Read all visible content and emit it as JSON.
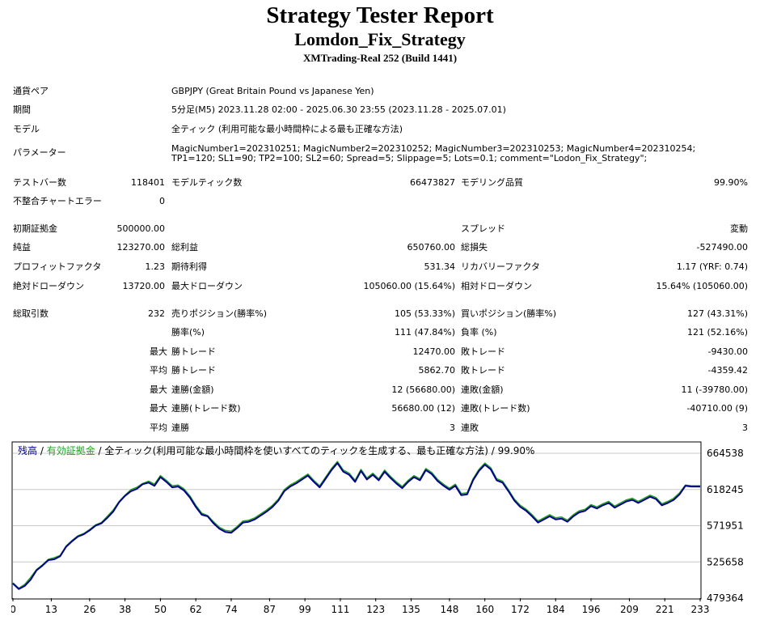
{
  "header": {
    "title": "Strategy Tester Report",
    "strategy": "Lomdon_Fix_Strategy",
    "server": "XMTrading-Real 252 (Build 1441)"
  },
  "settings": {
    "symbol_label": "通貨ペア",
    "symbol_value": "GBPJPY (Great Britain Pound vs Japanese Yen)",
    "period_label": "期間",
    "period_value": "5分足(M5) 2023.11.28 02:00 - 2025.06.30 23:55 (2023.11.28 - 2025.07.01)",
    "model_label": "モデル",
    "model_value": "全ティック (利用可能な最小時間枠による最も正確な方法)",
    "params_label": "パラメーター",
    "params_value": "MagicNumber1=202310251; MagicNumber2=202310252; MagicNumber3=202310253; MagicNumber4=202310254; TP1=120; SL1=90; TP2=100; SL2=60; Spread=5; Slippage=5; Lots=0.1; comment=\"Lodon_Fix_Strategy\";"
  },
  "stats": {
    "bars_label": "テストバー数",
    "bars_value": "118401",
    "ticks_label": "モデルティック数",
    "ticks_value": "66473827",
    "quality_label": "モデリング品質",
    "quality_value": "99.90%",
    "errors_label": "不整合チャートエラー",
    "errors_value": "0",
    "deposit_label": "初期証拠金",
    "deposit_value": "500000.00",
    "spread_label": "スプレッド",
    "spread_value": "変動",
    "net_label": "純益",
    "net_value": "123270.00",
    "gross_profit_label": "総利益",
    "gross_profit_value": "650760.00",
    "gross_loss_label": "総損失",
    "gross_loss_value": "-527490.00",
    "pf_label": "プロフィットファクタ",
    "pf_value": "1.23",
    "payoff_label": "期待利得",
    "payoff_value": "531.34",
    "recovery_label": "リカバリーファクタ",
    "recovery_value": "1.17 (YRF: 0.74)",
    "abs_dd_label": "絶対ドローダウン",
    "abs_dd_value": "13720.00",
    "max_dd_label": "最大ドローダウン",
    "max_dd_value": "105060.00 (15.64%)",
    "rel_dd_label": "相対ドローダウン",
    "rel_dd_value": "15.64% (105060.00)",
    "trades_label": "総取引数",
    "trades_value": "232",
    "short_label": "売りポジション(勝率%)",
    "short_value": "105 (53.33%)",
    "long_label": "買いポジション(勝率%)",
    "long_value": "127 (43.31%)",
    "win_label": "勝率(%)",
    "win_value": "111 (47.84%)",
    "loss_label": "負率 (%)",
    "loss_value": "121 (52.16%)",
    "max_prefix": "最大",
    "avg_prefix": "平均",
    "largest_win_label": "勝トレード",
    "largest_win_value": "12470.00",
    "largest_loss_label": "敗トレード",
    "largest_loss_value": "-9430.00",
    "avg_win_label": "勝トレード",
    "avg_win_value": "5862.70",
    "avg_loss_label": "敗トレード",
    "avg_loss_value": "-4359.42",
    "max_consec_wins_label": "連勝(金額)",
    "max_consec_wins_value": "12 (56680.00)",
    "max_consec_losses_label": "連敗(金額)",
    "max_consec_losses_value": "11 (-39780.00)",
    "max_consec_profit_label": "連勝(トレード数)",
    "max_consec_profit_value": "56680.00 (12)",
    "max_consec_loss_label": "連敗(トレード数)",
    "max_consec_loss_value": "-40710.00 (9)",
    "avg_consec_wins_label": "連勝",
    "avg_consec_wins_value": "3",
    "avg_consec_losses_label": "連敗",
    "avg_consec_losses_value": "3"
  },
  "chart_title": {
    "balance": "残高",
    "sep1": " / ",
    "equity": "有効証拠金",
    "sep2": " / ",
    "rest": "全ティック(利用可能な最小時間枠を使いすべてのティックを生成する、最も正確な方法) / 99.90%"
  },
  "colors": {
    "balance": "#00008b",
    "equity": "#1fa01f",
    "grid": "#c8c8c8"
  },
  "chart_data": {
    "type": "line",
    "title": "",
    "xlabel": "",
    "ylabel": "",
    "x_ticks": [
      "0",
      "13",
      "26",
      "38",
      "50",
      "62",
      "74",
      "87",
      "99",
      "111",
      "123",
      "135",
      "148",
      "160",
      "172",
      "184",
      "196",
      "209",
      "221",
      "233"
    ],
    "y_ticks": [
      "664538",
      "618245",
      "571951",
      "525658",
      "479364"
    ],
    "xlim": [
      0,
      233
    ],
    "ylim": [
      479364,
      678000
    ],
    "grid": true,
    "series": [
      {
        "name": "残高",
        "x": [
          0,
          2,
          4,
          6,
          8,
          10,
          12,
          14,
          16,
          18,
          20,
          22,
          24,
          26,
          28,
          30,
          32,
          34,
          36,
          38,
          40,
          42,
          44,
          46,
          48,
          50,
          52,
          54,
          56,
          58,
          60,
          62,
          64,
          66,
          68,
          70,
          72,
          74,
          76,
          78,
          80,
          82,
          84,
          86,
          88,
          90,
          92,
          94,
          96,
          98,
          100,
          102,
          104,
          106,
          108,
          110,
          112,
          114,
          116,
          118,
          120,
          122,
          124,
          126,
          128,
          130,
          132,
          134,
          136,
          138,
          140,
          142,
          144,
          146,
          148,
          150,
          152,
          154,
          156,
          158,
          160,
          162,
          164,
          166,
          168,
          170,
          172,
          174,
          176,
          178,
          180,
          182,
          184,
          186,
          188,
          190,
          192,
          194,
          196,
          198,
          200,
          202,
          204,
          206,
          208,
          210,
          212,
          214,
          216,
          218,
          220,
          222,
          224,
          226,
          228,
          230,
          233
        ],
        "values": [
          498000,
          491000,
          495000,
          503000,
          515000,
          521000,
          528000,
          529000,
          533000,
          545000,
          552000,
          558000,
          561000,
          566000,
          572000,
          575000,
          582000,
          590000,
          602000,
          610000,
          616000,
          619000,
          625000,
          627000,
          623000,
          634000,
          628000,
          621000,
          622000,
          617000,
          608000,
          596000,
          586000,
          584000,
          575000,
          568000,
          564000,
          563000,
          569000,
          576000,
          577000,
          580000,
          585000,
          590000,
          596000,
          604000,
          616000,
          622000,
          626000,
          631000,
          636000,
          628000,
          621000,
          632000,
          643000,
          652000,
          641000,
          637000,
          628000,
          642000,
          631000,
          637000,
          630000,
          641000,
          633000,
          626000,
          620000,
          628000,
          634000,
          630000,
          643000,
          638000,
          629000,
          623000,
          618000,
          623000,
          611000,
          612000,
          630000,
          642000,
          650000,
          644000,
          630000,
          627000,
          616000,
          604000,
          596000,
          591000,
          584000,
          576000,
          580000,
          584000,
          580000,
          581000,
          577000,
          584000,
          589000,
          591000,
          597000,
          594000,
          598000,
          601000,
          595000,
          599000,
          603000,
          605000,
          601000,
          605000,
          609000,
          606000,
          598000,
          601000,
          605000,
          612000,
          623000,
          622000,
          622000
        ]
      },
      {
        "name": "有効証拠金",
        "x": [
          0,
          2,
          4,
          6,
          8,
          10,
          12,
          14,
          16,
          18,
          20,
          22,
          24,
          26,
          28,
          30,
          32,
          34,
          36,
          38,
          40,
          42,
          44,
          46,
          48,
          50,
          52,
          54,
          56,
          58,
          60,
          62,
          64,
          66,
          68,
          70,
          72,
          74,
          76,
          78,
          80,
          82,
          84,
          86,
          88,
          90,
          92,
          94,
          96,
          98,
          100,
          102,
          104,
          106,
          108,
          110,
          112,
          114,
          116,
          118,
          120,
          122,
          124,
          126,
          128,
          130,
          132,
          134,
          136,
          138,
          140,
          142,
          144,
          146,
          148,
          150,
          152,
          154,
          156,
          158,
          160,
          162,
          164,
          166,
          168,
          170,
          172,
          174,
          176,
          178,
          180,
          182,
          184,
          186,
          188,
          190,
          192,
          194,
          196,
          198,
          200,
          202,
          204,
          206,
          208,
          210,
          212,
          214,
          216,
          218,
          220,
          222,
          224,
          226,
          228,
          230,
          233
        ],
        "values": [
          499000,
          492000,
          497000,
          506000,
          516000,
          522000,
          529000,
          531000,
          534000,
          546000,
          553000,
          559000,
          562000,
          567000,
          573000,
          576000,
          584000,
          592000,
          603000,
          611000,
          618000,
          621000,
          626000,
          629000,
          625000,
          636000,
          630000,
          623000,
          624000,
          619000,
          610000,
          598000,
          588000,
          585000,
          577000,
          570000,
          566000,
          565000,
          571000,
          578000,
          579000,
          582000,
          587000,
          592000,
          598000,
          606000,
          618000,
          624000,
          628000,
          633000,
          638000,
          630000,
          623000,
          634000,
          645000,
          654000,
          643000,
          639000,
          630000,
          644000,
          633000,
          639000,
          632000,
          643000,
          635000,
          628000,
          622000,
          630000,
          636000,
          632000,
          645000,
          640000,
          631000,
          625000,
          620000,
          625000,
          613000,
          614000,
          632000,
          644000,
          652000,
          646000,
          632000,
          629000,
          618000,
          606000,
          598000,
          593000,
          586000,
          578000,
          582000,
          586000,
          582000,
          583000,
          579000,
          586000,
          591000,
          593000,
          599000,
          596000,
          600000,
          603000,
          597000,
          601000,
          605000,
          607000,
          603000,
          607000,
          611000,
          608000,
          600000,
          603000,
          607000,
          614000,
          624000,
          623000,
          623000
        ]
      }
    ]
  }
}
